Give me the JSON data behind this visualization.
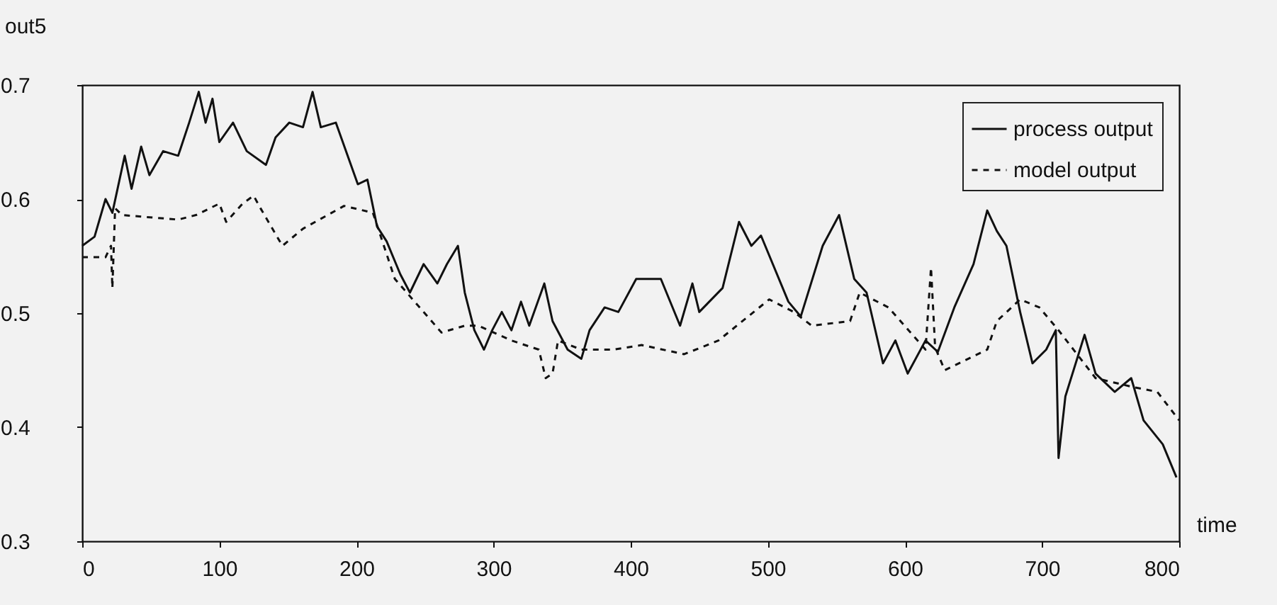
{
  "chart_data": {
    "type": "line",
    "xlabel": "time",
    "ylabel": "out5",
    "xlim": [
      0,
      800
    ],
    "ylim": [
      0.3,
      0.7
    ],
    "xticks": [
      0,
      100,
      200,
      300,
      400,
      500,
      600,
      700,
      800
    ],
    "yticks": [
      0.3,
      0.4,
      0.5,
      0.6,
      0.7
    ],
    "grid": false,
    "legend": "top right",
    "marker": "none",
    "series": [
      {
        "name": "process output",
        "color": "#111111",
        "line_style": "solid",
        "x": [
          0,
          9,
          17,
          22,
          31,
          36,
          43,
          49,
          59,
          70,
          78,
          85,
          90,
          95,
          100,
          110,
          120,
          134,
          141,
          151,
          161,
          168,
          174,
          185,
          201,
          208,
          215,
          222,
          232,
          239,
          249,
          259,
          266,
          274,
          279,
          286,
          293,
          299,
          306,
          313,
          320,
          326,
          337,
          343,
          354,
          364,
          370,
          381,
          391,
          404,
          422,
          436,
          445,
          450,
          467,
          479,
          488,
          495,
          515,
          524,
          540,
          552,
          563,
          572,
          584,
          593,
          602,
          615,
          624,
          636,
          650,
          660,
          667,
          674,
          684,
          693,
          703,
          710,
          712,
          717,
          731,
          739,
          753,
          765,
          774,
          788,
          798
        ],
        "values": [
          0.559,
          0.567,
          0.6,
          0.588,
          0.638,
          0.609,
          0.646,
          0.621,
          0.642,
          0.638,
          0.667,
          0.694,
          0.667,
          0.688,
          0.65,
          0.667,
          0.642,
          0.63,
          0.654,
          0.667,
          0.663,
          0.694,
          0.663,
          0.667,
          0.613,
          0.617,
          0.576,
          0.563,
          0.534,
          0.518,
          0.543,
          0.526,
          0.543,
          0.559,
          0.518,
          0.485,
          0.468,
          0.485,
          0.501,
          0.485,
          0.51,
          0.489,
          0.526,
          0.493,
          0.468,
          0.46,
          0.485,
          0.505,
          0.501,
          0.53,
          0.53,
          0.489,
          0.526,
          0.501,
          0.522,
          0.58,
          0.559,
          0.568,
          0.51,
          0.497,
          0.559,
          0.586,
          0.53,
          0.518,
          0.456,
          0.476,
          0.447,
          0.476,
          0.466,
          0.505,
          0.543,
          0.59,
          0.572,
          0.559,
          0.501,
          0.456,
          0.468,
          0.485,
          0.373,
          0.427,
          0.481,
          0.447,
          0.431,
          0.443,
          0.406,
          0.385,
          0.356
        ]
      },
      {
        "name": "model output",
        "color": "#111111",
        "line_style": "dashed",
        "x": [
          0,
          17,
          21,
          22,
          24,
          29,
          70,
          83,
          100,
          105,
          117,
          125,
          130,
          146,
          161,
          191,
          212,
          228,
          262,
          279,
          289,
          313,
          333,
          338,
          343,
          347,
          364,
          387,
          408,
          439,
          464,
          501,
          519,
          532,
          560,
          567,
          588,
          615,
          619,
          622,
          629,
          660,
          667,
          684,
          698,
          712,
          739,
          767,
          784,
          800
        ],
        "values": [
          0.549,
          0.549,
          0.559,
          0.522,
          0.592,
          0.586,
          0.582,
          0.586,
          0.596,
          0.58,
          0.596,
          0.603,
          0.592,
          0.559,
          0.574,
          0.594,
          0.588,
          0.53,
          0.483,
          0.489,
          0.489,
          0.476,
          0.468,
          0.443,
          0.447,
          0.476,
          0.468,
          0.468,
          0.472,
          0.464,
          0.476,
          0.512,
          0.501,
          0.489,
          0.493,
          0.518,
          0.505,
          0.468,
          0.54,
          0.47,
          0.45,
          0.468,
          0.493,
          0.512,
          0.505,
          0.485,
          0.443,
          0.435,
          0.431,
          0.406
        ]
      }
    ]
  }
}
